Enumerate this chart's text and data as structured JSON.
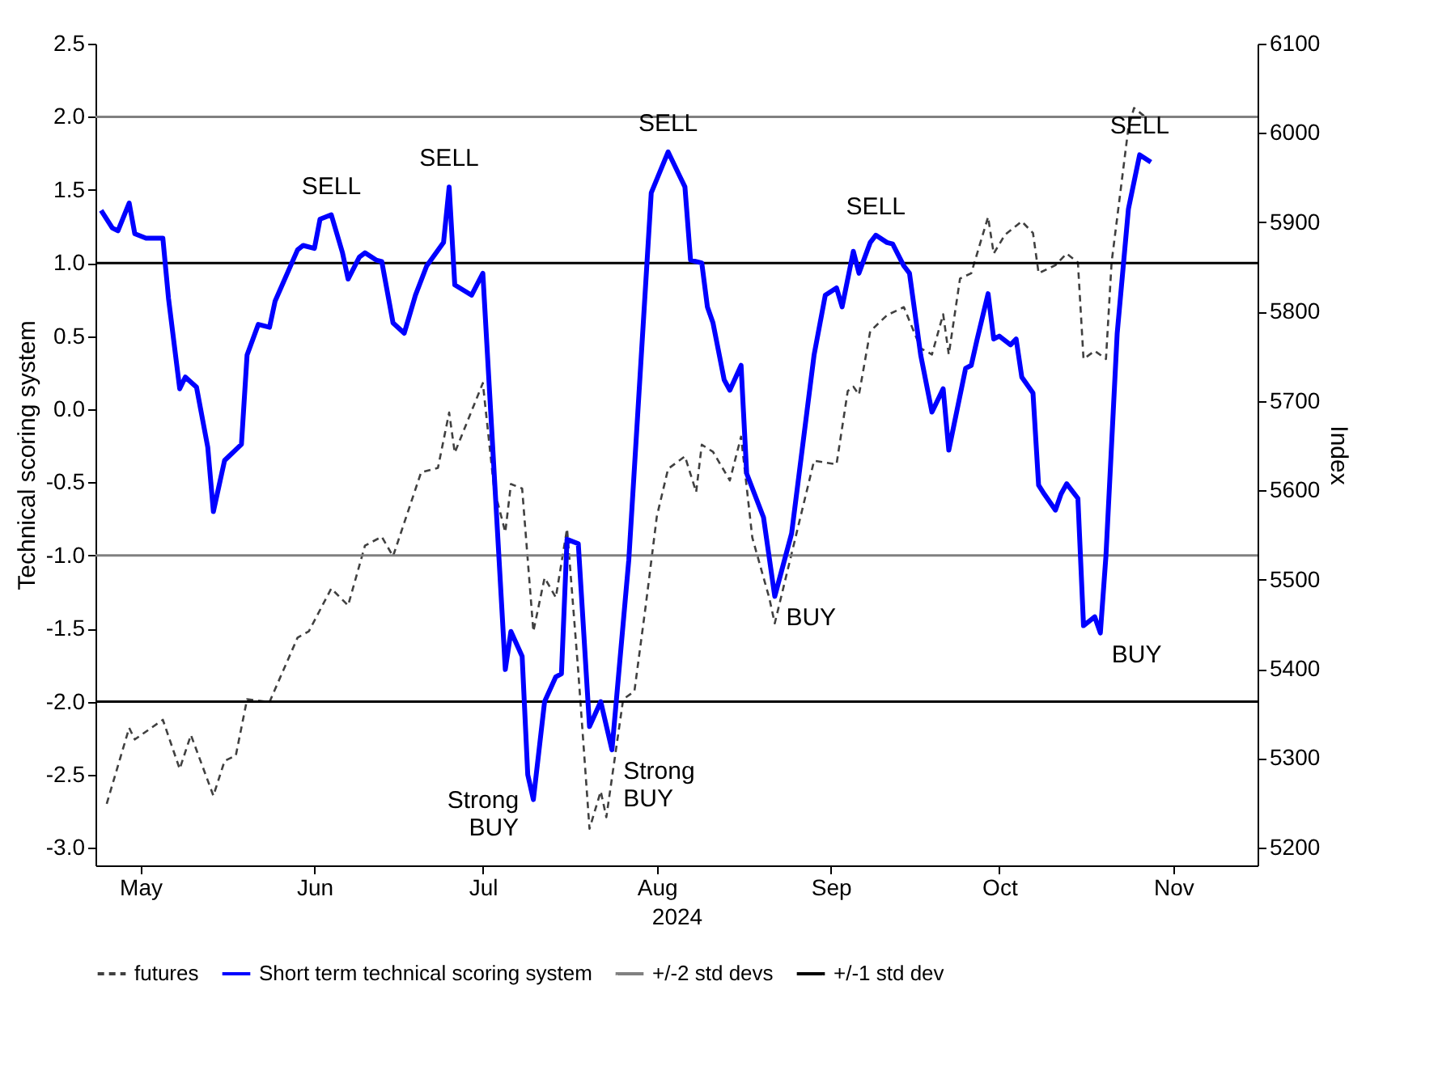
{
  "chart_data": {
    "type": "line",
    "xlabel": "2024",
    "ylabel": "Technical scoring system",
    "y2label": "Index",
    "xlim": [
      "2024-05-08",
      "2024-12-01"
    ],
    "xticks": [
      {
        "value": "2024-05-16",
        "label": "May"
      },
      {
        "value": "2024-06-16",
        "label": "Jun"
      },
      {
        "value": "2024-07-16",
        "label": "Jul"
      },
      {
        "value": "2024-08-16",
        "label": "Aug"
      },
      {
        "value": "2024-09-16",
        "label": "Sep"
      },
      {
        "value": "2024-10-16",
        "label": "Oct"
      },
      {
        "value": "2024-11-16",
        "label": "Nov"
      }
    ],
    "ylim": [
      -3.12,
      2.5
    ],
    "yticks": [
      {
        "value": -3,
        "label": "-3.0"
      },
      {
        "value": -2.5,
        "label": "-2.5"
      },
      {
        "value": -2,
        "label": "-2.0"
      },
      {
        "value": -1.5,
        "label": "-1.5"
      },
      {
        "value": -1,
        "label": "-1.0"
      },
      {
        "value": -0.5,
        "label": "-0.5"
      },
      {
        "value": 0,
        "label": "0.0"
      },
      {
        "value": 0.5,
        "label": "0.5"
      },
      {
        "value": 1,
        "label": "1.0"
      },
      {
        "value": 1.5,
        "label": "1.5"
      },
      {
        "value": 2,
        "label": "2.0"
      },
      {
        "value": 2.5,
        "label": "2.5"
      }
    ],
    "y2lim": [
      5180,
      6100
    ],
    "y2ticks": [
      5200,
      5300,
      5400,
      5500,
      5600,
      5700,
      5800,
      5900,
      6000,
      6100
    ],
    "legend": "bottom",
    "grid": false,
    "series": [
      {
        "name": "futures",
        "color": "#404040",
        "line_style": "dashed",
        "axis": "y2",
        "x": [
          "2024-05-10",
          "2024-05-14",
          "2024-05-15",
          "2024-05-20",
          "2024-05-23",
          "2024-05-25",
          "2024-05-29",
          "2024-05-31",
          "2024-06-02",
          "2024-06-04",
          "2024-06-08",
          "2024-06-13",
          "2024-06-15",
          "2024-06-19",
          "2024-06-22",
          "2024-06-25",
          "2024-06-28",
          "2024-06-30",
          "2024-07-05",
          "2024-07-08",
          "2024-07-10",
          "2024-07-11",
          "2024-07-16",
          "2024-07-18",
          "2024-07-20",
          "2024-07-21",
          "2024-07-23",
          "2024-07-25",
          "2024-07-27",
          "2024-07-29",
          "2024-07-31",
          "2024-08-02",
          "2024-08-04",
          "2024-08-06",
          "2024-08-07",
          "2024-08-10",
          "2024-08-12",
          "2024-08-14",
          "2024-08-16",
          "2024-08-18",
          "2024-08-21",
          "2024-08-23",
          "2024-08-24",
          "2024-08-26",
          "2024-08-29",
          "2024-08-31",
          "2024-09-02",
          "2024-09-05",
          "2024-09-06",
          "2024-09-09",
          "2024-09-13",
          "2024-09-17",
          "2024-09-19",
          "2024-09-20",
          "2024-09-21",
          "2024-09-23",
          "2024-09-26",
          "2024-09-29",
          "2024-10-02",
          "2024-10-04",
          "2024-10-06",
          "2024-10-07",
          "2024-10-09",
          "2024-10-11",
          "2024-10-14",
          "2024-10-15",
          "2024-10-17",
          "2024-10-20",
          "2024-10-22",
          "2024-10-23",
          "2024-10-26",
          "2024-10-28",
          "2024-10-30",
          "2024-10-31",
          "2024-11-02",
          "2024-11-04",
          "2024-11-05",
          "2024-11-08",
          "2024-11-09",
          "2024-11-11"
        ],
        "values": [
          5249,
          5334,
          5321,
          5343,
          5288,
          5326,
          5258,
          5297,
          5303,
          5366,
          5363,
          5435,
          5442,
          5490,
          5471,
          5538,
          5548,
          5526,
          5620,
          5625,
          5687,
          5642,
          5720,
          5602,
          5553,
          5607,
          5602,
          5442,
          5502,
          5480,
          5557,
          5397,
          5221,
          5263,
          5234,
          5366,
          5375,
          5470,
          5571,
          5624,
          5638,
          5598,
          5651,
          5643,
          5611,
          5660,
          5547,
          5480,
          5451,
          5529,
          5633,
          5629,
          5711,
          5716,
          5707,
          5778,
          5796,
          5805,
          5759,
          5752,
          5797,
          5752,
          5837,
          5843,
          5906,
          5865,
          5886,
          5901,
          5888,
          5843,
          5852,
          5865,
          5855,
          5747,
          5756,
          5747,
          5855,
          6006,
          6028,
          6018
        ]
      },
      {
        "name": "Short term technical scoring system",
        "color": "#0000ff",
        "line_style": "solid",
        "x": [
          "2024-05-09",
          "2024-05-11",
          "2024-05-12",
          "2024-05-14",
          "2024-05-15",
          "2024-05-17",
          "2024-05-20",
          "2024-05-21",
          "2024-05-23",
          "2024-05-24",
          "2024-05-26",
          "2024-05-28",
          "2024-05-29",
          "2024-05-31",
          "2024-06-03",
          "2024-06-04",
          "2024-06-06",
          "2024-06-08",
          "2024-06-09",
          "2024-06-13",
          "2024-06-14",
          "2024-06-16",
          "2024-06-17",
          "2024-06-19",
          "2024-06-21",
          "2024-06-22",
          "2024-06-24",
          "2024-06-25",
          "2024-06-27",
          "2024-06-28",
          "2024-06-30",
          "2024-07-02",
          "2024-07-04",
          "2024-07-06",
          "2024-07-09",
          "2024-07-10",
          "2024-07-11",
          "2024-07-14",
          "2024-07-16",
          "2024-07-20",
          "2024-07-21",
          "2024-07-23",
          "2024-07-24",
          "2024-07-25",
          "2024-07-27",
          "2024-07-29",
          "2024-07-30",
          "2024-07-31",
          "2024-08-02",
          "2024-08-04",
          "2024-08-06",
          "2024-08-08",
          "2024-08-11",
          "2024-08-15",
          "2024-08-18",
          "2024-08-20",
          "2024-08-21",
          "2024-08-22",
          "2024-08-24",
          "2024-08-25",
          "2024-08-26",
          "2024-08-28",
          "2024-08-29",
          "2024-08-31",
          "2024-09-01",
          "2024-09-04",
          "2024-09-06",
          "2024-09-09",
          "2024-09-13",
          "2024-09-15",
          "2024-09-17",
          "2024-09-18",
          "2024-09-20",
          "2024-09-21",
          "2024-09-23",
          "2024-09-24",
          "2024-09-26",
          "2024-09-27",
          "2024-09-29",
          "2024-09-30",
          "2024-10-02",
          "2024-10-04",
          "2024-10-06",
          "2024-10-07",
          "2024-10-10",
          "2024-10-11",
          "2024-10-12",
          "2024-10-14",
          "2024-10-15",
          "2024-10-16",
          "2024-10-18",
          "2024-10-19",
          "2024-10-20",
          "2024-10-22",
          "2024-10-23",
          "2024-10-24",
          "2024-10-26",
          "2024-10-27",
          "2024-10-28",
          "2024-10-30",
          "2024-10-31",
          "2024-11-02",
          "2024-11-03",
          "2024-11-04",
          "2024-11-06",
          "2024-11-08",
          "2024-11-10",
          "2024-11-12"
        ],
        "values": [
          1.36,
          1.24,
          1.22,
          1.41,
          1.2,
          1.17,
          1.17,
          0.76,
          0.14,
          0.22,
          0.15,
          -0.26,
          -0.7,
          -0.35,
          -0.24,
          0.37,
          0.58,
          0.56,
          0.74,
          1.09,
          1.12,
          1.1,
          1.3,
          1.33,
          1.07,
          0.89,
          1.04,
          1.07,
          1.02,
          1.01,
          0.59,
          0.52,
          0.78,
          0.98,
          1.14,
          1.52,
          0.85,
          0.78,
          0.93,
          -1.78,
          -1.52,
          -1.69,
          -2.5,
          -2.67,
          -2.0,
          -1.83,
          -1.81,
          -0.89,
          -0.92,
          -2.17,
          -2.0,
          -2.33,
          -1.03,
          1.48,
          1.76,
          1.6,
          1.52,
          1.02,
          1.0,
          0.7,
          0.59,
          0.2,
          0.13,
          0.3,
          -0.44,
          -0.74,
          -1.28,
          -0.85,
          0.37,
          0.78,
          0.83,
          0.7,
          1.08,
          0.93,
          1.14,
          1.19,
          1.14,
          1.13,
          0.98,
          0.93,
          0.37,
          -0.02,
          0.14,
          -0.28,
          0.28,
          0.3,
          0.47,
          0.79,
          0.48,
          0.5,
          0.44,
          0.48,
          0.22,
          0.11,
          -0.52,
          -0.58,
          -0.69,
          -0.58,
          -0.51,
          -0.61,
          -1.48,
          -1.42,
          -1.53,
          -1.0,
          0.52,
          1.37,
          1.74,
          1.69
        ]
      }
    ],
    "ref_lines": [
      {
        "axis": "y",
        "value": 2,
        "label": "+/-2 std devs",
        "color": "#808080"
      },
      {
        "axis": "y",
        "value": -1,
        "color": "#808080"
      },
      {
        "axis": "y",
        "value": 1,
        "label": "+/-1 std dev",
        "color": "#000000"
      },
      {
        "axis": "y",
        "value": -2,
        "color": "#000000"
      }
    ],
    "annotations": [
      {
        "text": "SELL",
        "x": "2024-06-19",
        "y": 1.33
      },
      {
        "text": "SELL",
        "x": "2024-07-10",
        "y": 1.52
      },
      {
        "text": "SELL",
        "x": "2024-08-18",
        "y": 1.76
      },
      {
        "text": "SELL",
        "x": "2024-09-24",
        "y": 1.19
      },
      {
        "text": "SELL",
        "x": "2024-11-10",
        "y": 1.74
      },
      {
        "text": "BUY",
        "x": "2024-09-06",
        "y": -1.28
      },
      {
        "text": "BUY",
        "x": "2024-11-03",
        "y": -1.53
      },
      {
        "text": "Strong BUY",
        "x": "2024-07-25",
        "y": -2.67
      },
      {
        "text": "Strong BUY",
        "x": "2024-08-08",
        "y": -2.33
      }
    ]
  }
}
